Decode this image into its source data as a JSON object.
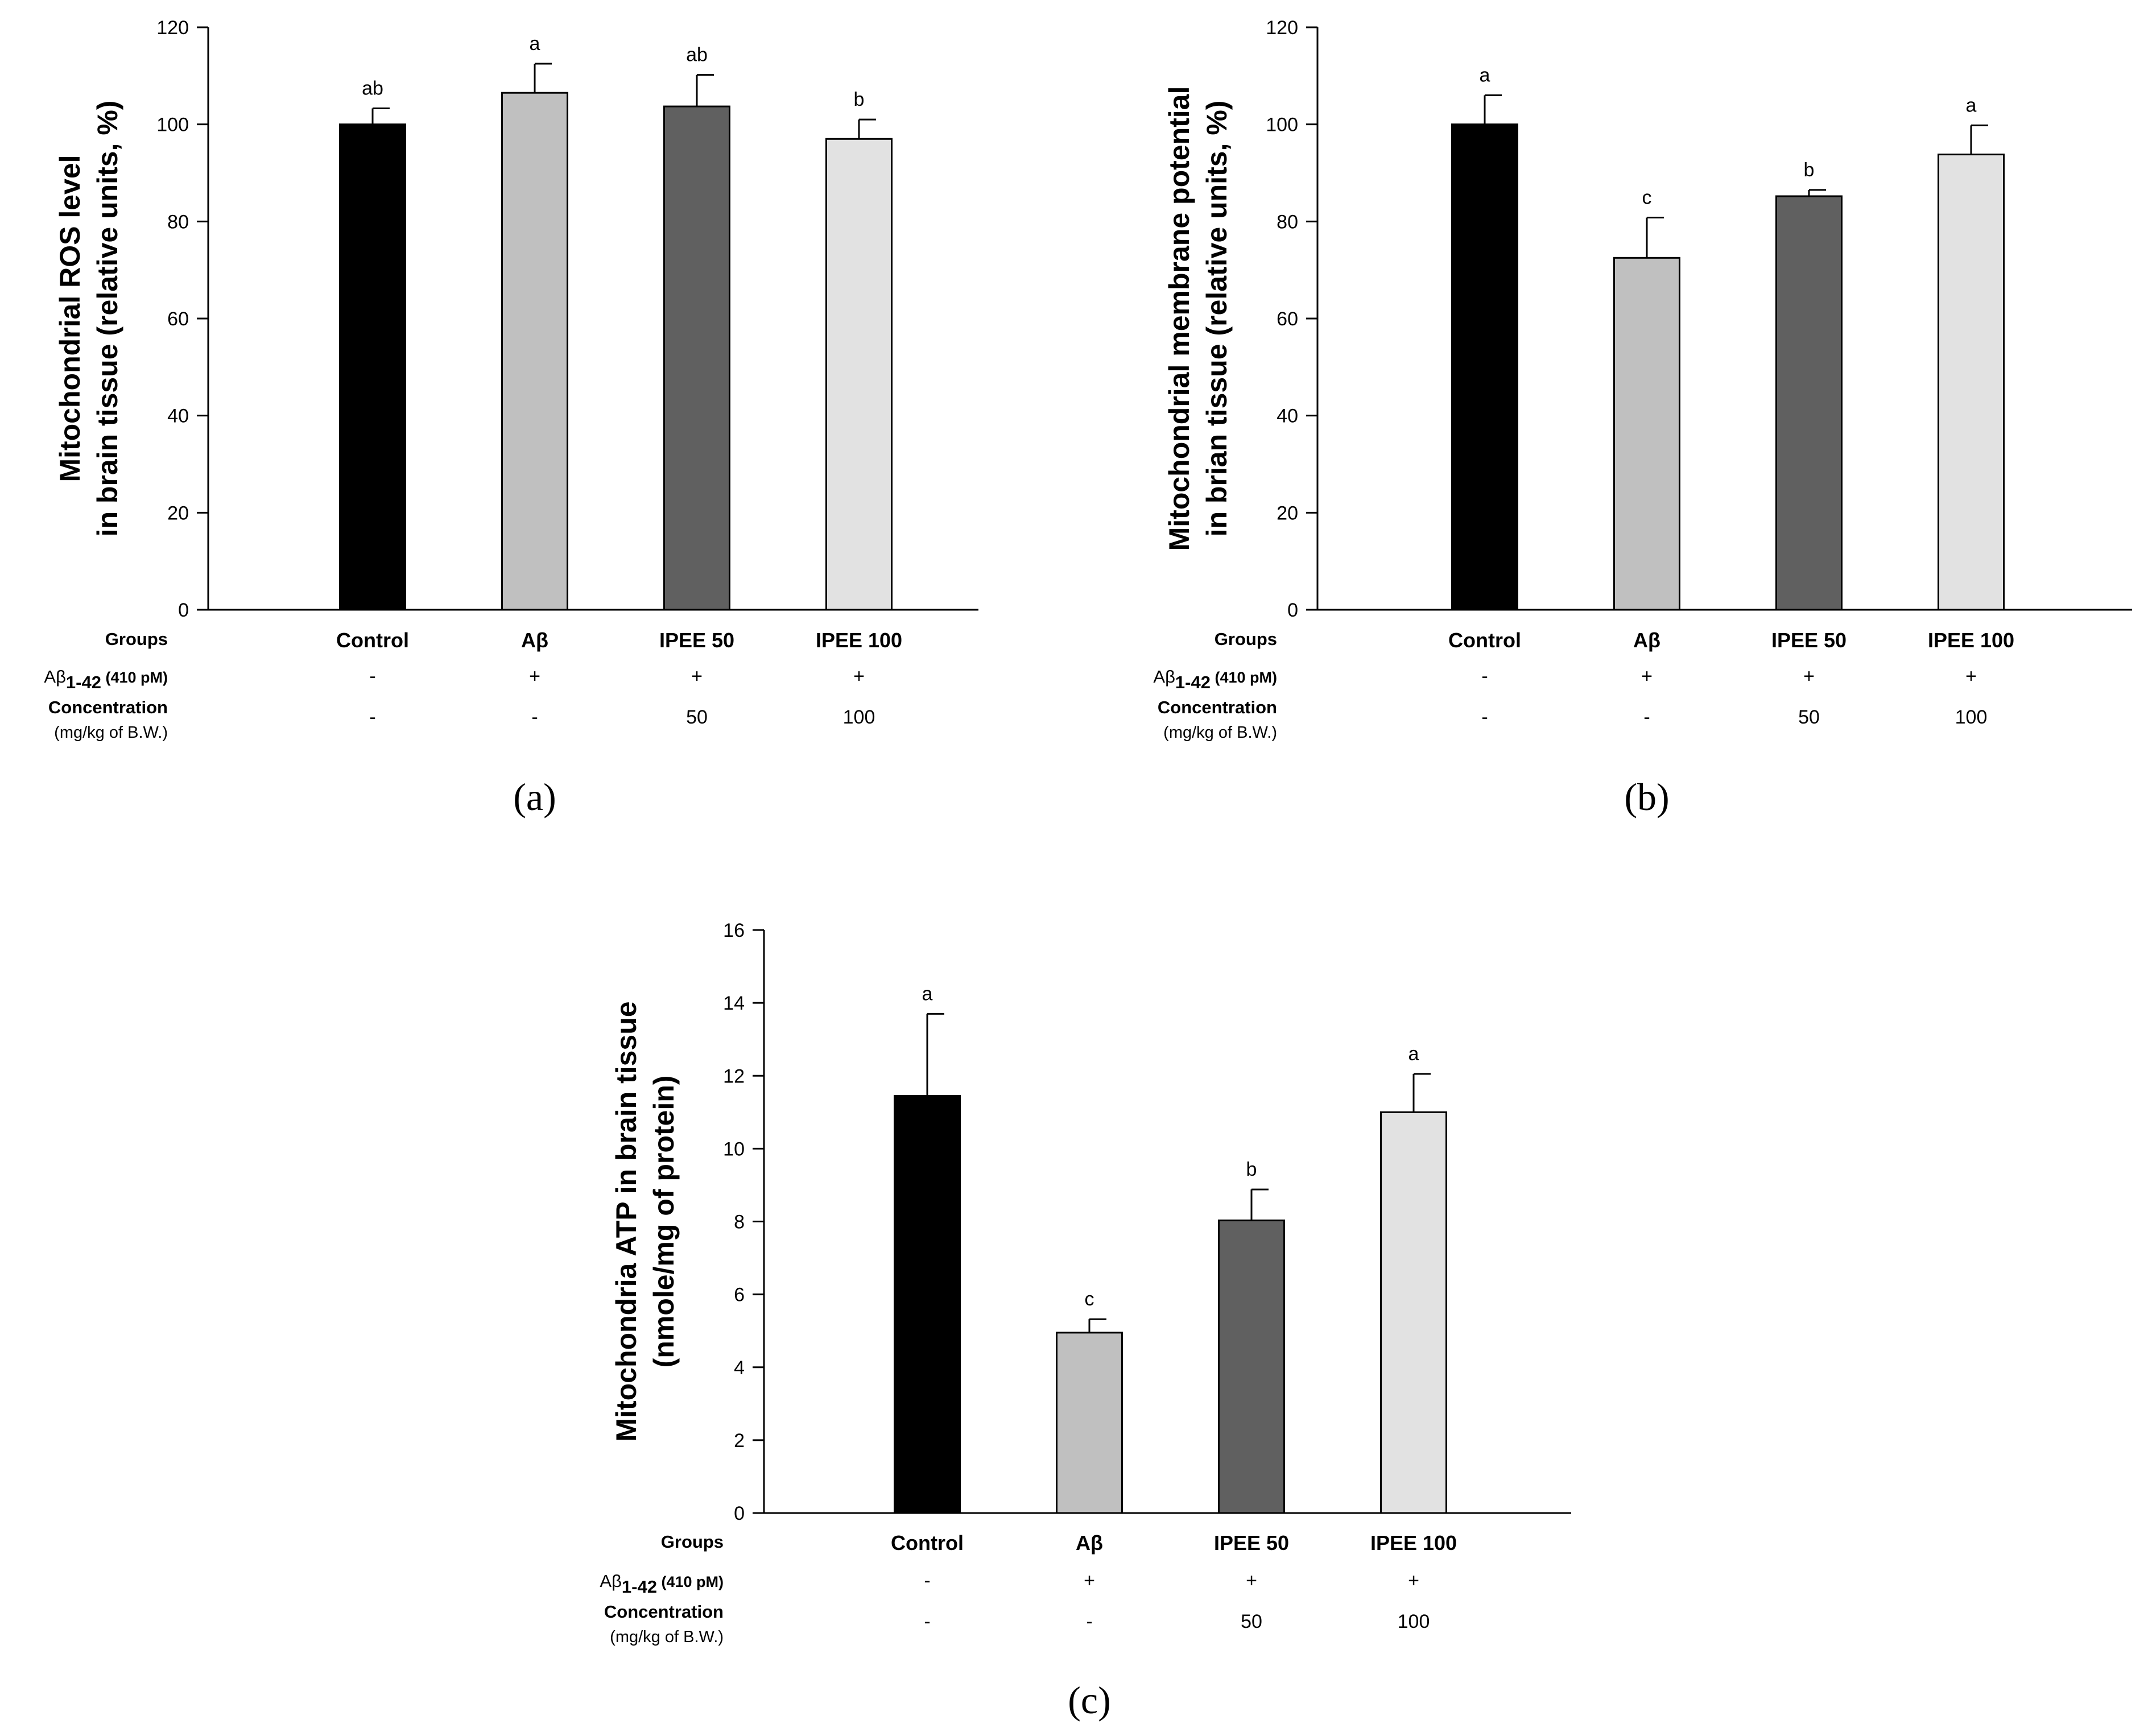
{
  "rows": {
    "groups_label": "Groups",
    "abeta_label_prefix": "Aβ",
    "abeta_label_sub": "1-42",
    "abeta_label_suffix": " (410 pM)",
    "concentration_label": "Concentration",
    "concentration_unit": "(mg/kg of B.W.)"
  },
  "colors": {
    "control": "#000000",
    "abeta": "#c0c0c0",
    "ipee50": "#606060",
    "ipee100": "#e2e2e2"
  },
  "chart_data": [
    {
      "type": "bar",
      "panel": "(a)",
      "ylabel_line1": "Mitochondrial ROS level",
      "ylabel_line2": "in brain tissue (relative units, %)",
      "ylim": [
        0,
        120
      ],
      "yticks": [
        "0",
        "20",
        "40",
        "60",
        "80",
        "100",
        "120"
      ],
      "categories": [
        "Control",
        "Aβ",
        "IPEE 50",
        "IPEE 100"
      ],
      "values": [
        100,
        106.5,
        103.7,
        97
      ],
      "errors": [
        3.3,
        6,
        6.5,
        4
      ],
      "significance": [
        "ab",
        "a",
        "ab",
        "b"
      ],
      "abeta": [
        "-",
        "+",
        "+",
        "+"
      ],
      "concentration": [
        "-",
        "-",
        "50",
        "100"
      ]
    },
    {
      "type": "bar",
      "panel": "(b)",
      "ylabel_line1": "Mitochondrial membrane potential",
      "ylabel_line2": "in brian tissue (relative units, %)",
      "ylim": [
        0,
        120
      ],
      "yticks": [
        "0",
        "20",
        "40",
        "60",
        "80",
        "100",
        "120"
      ],
      "categories": [
        "Control",
        "Aβ",
        "IPEE 50",
        "IPEE 100"
      ],
      "values": [
        100,
        72.5,
        85.2,
        93.8
      ],
      "errors": [
        6,
        8.3,
        1.3,
        6
      ],
      "significance": [
        "a",
        "c",
        "b",
        "a"
      ],
      "abeta": [
        "-",
        "+",
        "+",
        "+"
      ],
      "concentration": [
        "-",
        "-",
        "50",
        "100"
      ]
    },
    {
      "type": "bar",
      "panel": "(c)",
      "ylabel_line1": "Mitochondria ATP in brain tissue",
      "ylabel_line2": "(nmole/mg of protein)",
      "ylim": [
        0,
        16
      ],
      "yticks": [
        "0",
        "2",
        "4",
        "6",
        "8",
        "10",
        "12",
        "14",
        "16"
      ],
      "categories": [
        "Control",
        "Aβ",
        "IPEE 50",
        "IPEE 100"
      ],
      "values": [
        11.45,
        4.95,
        8.03,
        11.0
      ],
      "errors": [
        2.25,
        0.37,
        0.85,
        1.05
      ],
      "significance": [
        "a",
        "c",
        "b",
        "a"
      ],
      "abeta": [
        "-",
        "+",
        "+",
        "+"
      ],
      "concentration": [
        "-",
        "-",
        "50",
        "100"
      ]
    }
  ]
}
